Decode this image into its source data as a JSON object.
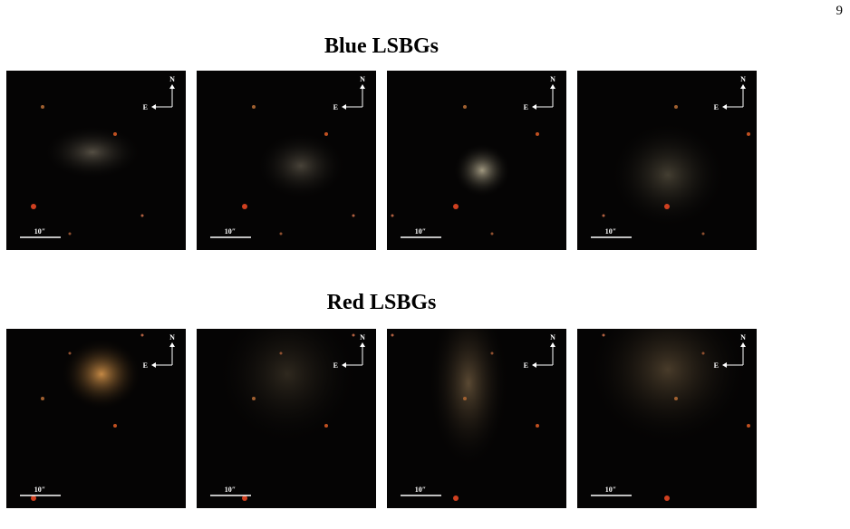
{
  "page_number": "9",
  "sections": [
    {
      "title": "Blue LSBGs",
      "panels": [
        {
          "north": "N",
          "east": "E",
          "scale": "10″"
        },
        {
          "north": "N",
          "east": "E",
          "scale": "10″"
        },
        {
          "north": "N",
          "east": "E",
          "scale": "10″"
        },
        {
          "north": "N",
          "east": "E",
          "scale": "10″"
        }
      ]
    },
    {
      "title": "Red LSBGs",
      "panels": [
        {
          "north": "N",
          "east": "E",
          "scale": "10″"
        },
        {
          "north": "N",
          "east": "E",
          "scale": "10″"
        },
        {
          "north": "N",
          "east": "E",
          "scale": "10″"
        },
        {
          "north": "N",
          "east": "E",
          "scale": "10″"
        }
      ]
    }
  ]
}
